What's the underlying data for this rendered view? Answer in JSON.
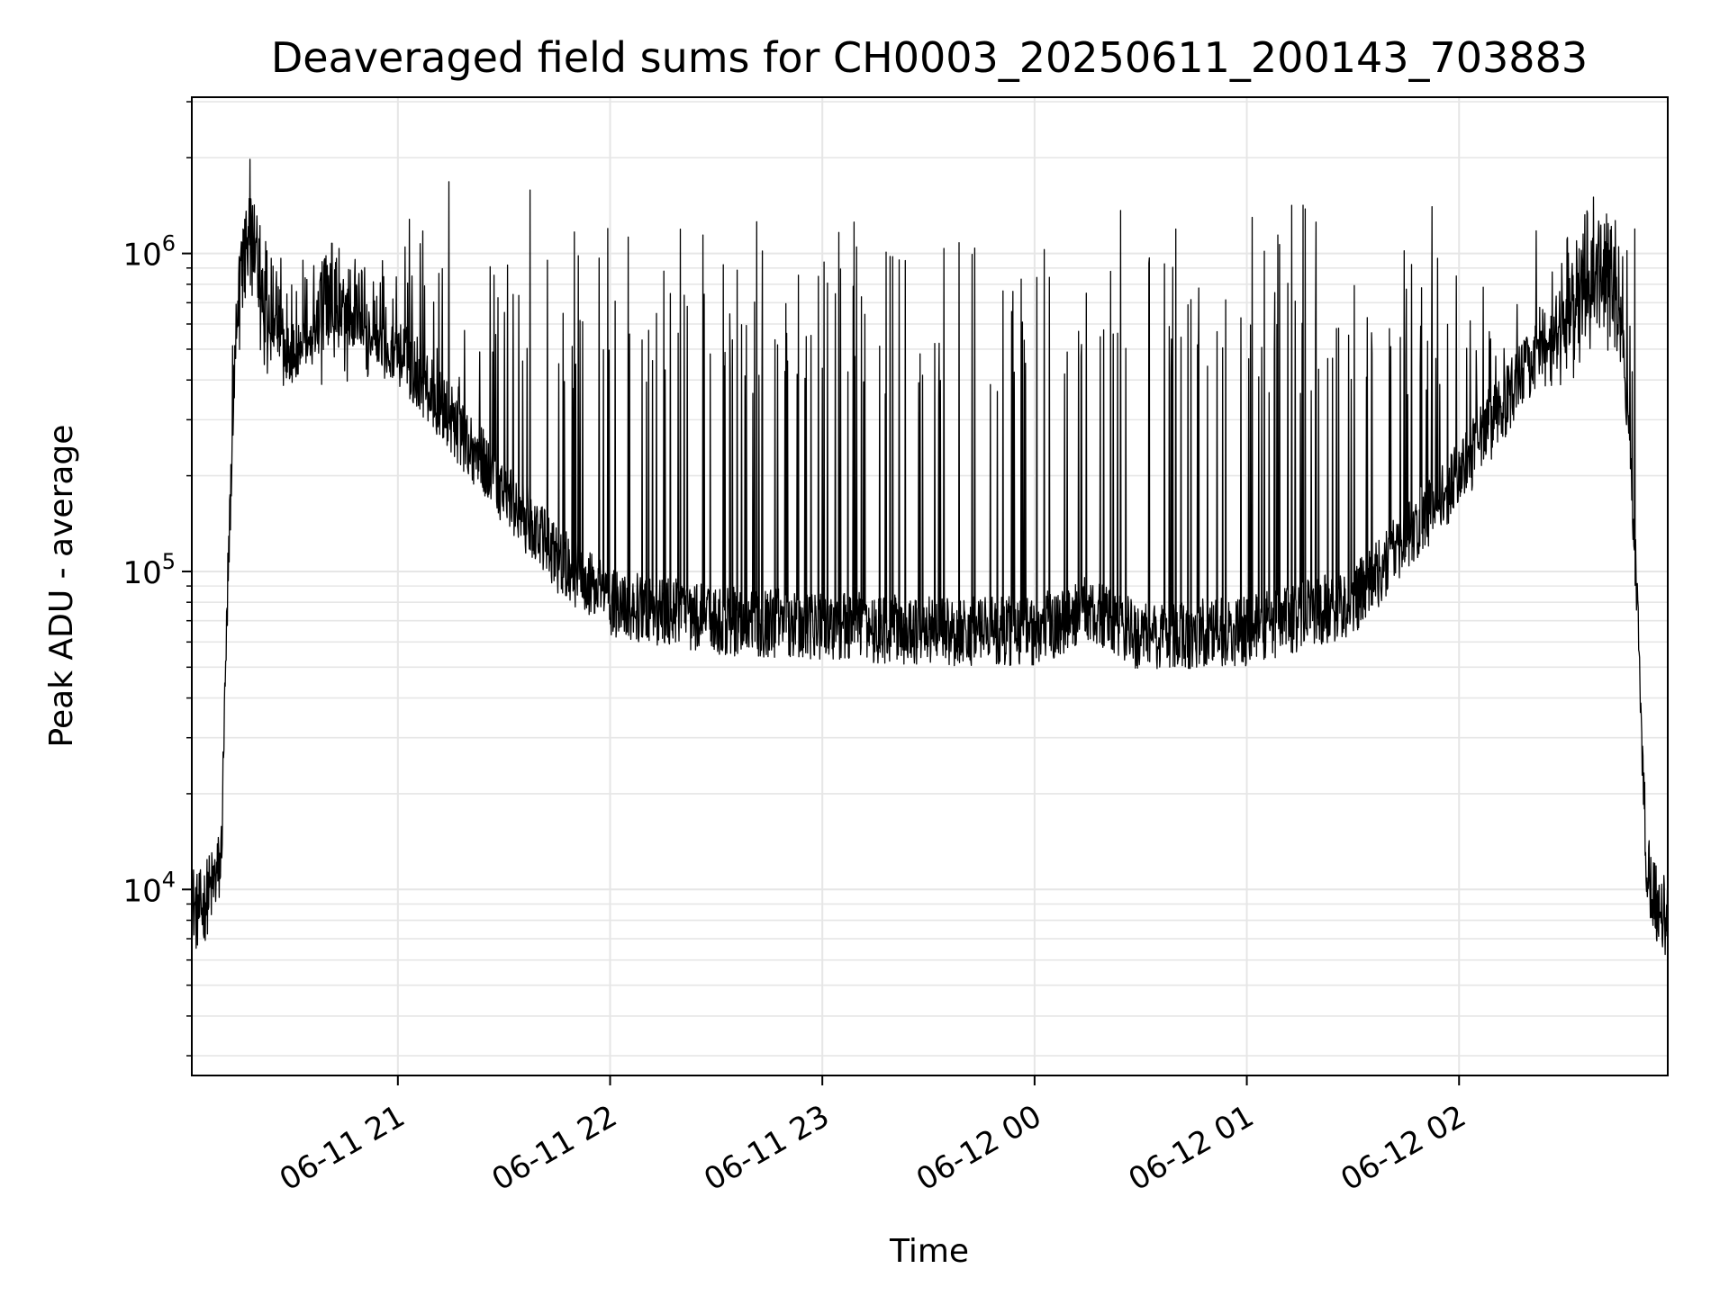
{
  "chart_data": {
    "type": "line",
    "title": "Deaveraged field sums for CH0003_20250611_200143_703883",
    "xlabel": "Time",
    "ylabel": "Peak ADU - average",
    "y_scale": "log",
    "ylim": [
      2600,
      3100000
    ],
    "xlim": [
      "2025-06-11 20:01:45",
      "2025-06-12 02:59:00"
    ],
    "x_ticks": [
      {
        "value": "2025-06-11 21:00",
        "label": "06-11 21"
      },
      {
        "value": "2025-06-11 22:00",
        "label": "06-11 22"
      },
      {
        "value": "2025-06-11 23:00",
        "label": "06-11 23"
      },
      {
        "value": "2025-06-12 00:00",
        "label": "06-12 00"
      },
      {
        "value": "2025-06-12 01:00",
        "label": "06-12 01"
      },
      {
        "value": "2025-06-12 02:00",
        "label": "06-12 02"
      }
    ],
    "y_ticks": [
      {
        "value": 10000,
        "base": "10",
        "exp": "4"
      },
      {
        "value": 100000,
        "base": "10",
        "exp": "5"
      },
      {
        "value": 1000000,
        "base": "10",
        "exp": "6"
      }
    ],
    "grid": true,
    "line_color": "#000000",
    "series": [
      {
        "x": [
          "2025-06-11 20:01:45",
          "2025-06-11 20:03:00",
          "2025-06-11 20:05:00",
          "2025-06-11 20:06:00",
          "2025-06-11 20:08:00",
          "2025-06-11 20:10:00",
          "2025-06-11 20:12:00",
          "2025-06-11 20:14:00",
          "2025-06-11 20:16:00",
          "2025-06-11 20:18:00",
          "2025-06-11 20:20:00",
          "2025-06-11 20:25:00",
          "2025-06-11 20:30:00",
          "2025-06-11 20:40:00",
          "2025-06-11 20:50:00",
          "2025-06-11 21:00:00",
          "2025-06-11 21:15:00",
          "2025-06-11 21:30:00",
          "2025-06-11 21:45:00",
          "2025-06-11 22:00:00",
          "2025-06-11 22:30:00",
          "2025-06-11 23:00:00",
          "2025-06-11 23:30:00",
          "2025-06-12 00:00:00",
          "2025-06-12 00:15:00",
          "2025-06-12 00:30:00",
          "2025-06-12 01:00:00",
          "2025-06-12 01:30:00",
          "2025-06-12 02:00:00",
          "2025-06-12 02:20:00",
          "2025-06-12 02:35:00",
          "2025-06-12 02:42:00",
          "2025-06-12 02:46:00",
          "2025-06-12 02:50:00",
          "2025-06-12 02:53:00",
          "2025-06-12 02:56:00",
          "2025-06-12 02:59:00"
        ],
        "y": [
          9500,
          8500,
          8800,
          9500,
          10500,
          12000,
          100000,
          450000,
          1300000,
          1400000,
          900000,
          650000,
          500000,
          700000,
          650000,
          500000,
          300000,
          180000,
          110000,
          80000,
          70000,
          68000,
          65000,
          65000,
          75000,
          62000,
          65000,
          80000,
          200000,
          450000,
          900000,
          950000,
          700000,
          100000,
          12000,
          9000,
          8000
        ]
      }
    ]
  }
}
